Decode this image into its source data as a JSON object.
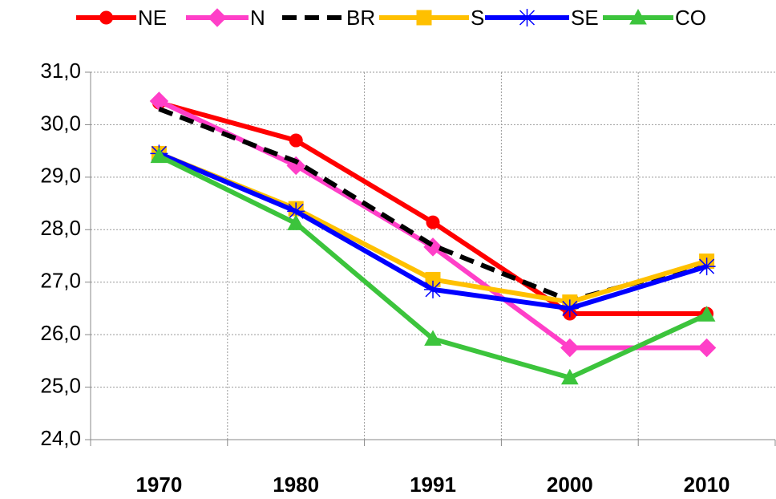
{
  "chart_data": {
    "type": "line",
    "categories": [
      "1970",
      "1980",
      "1991",
      "2000",
      "2010"
    ],
    "series": [
      {
        "name": "NE",
        "color": "#ff0000",
        "marker": "circle",
        "values": [
          30.42,
          29.7,
          28.14,
          26.4,
          26.4
        ]
      },
      {
        "name": "N",
        "color": "#ff3fc8",
        "marker": "diamond",
        "values": [
          30.45,
          29.22,
          27.67,
          25.75,
          25.75
        ]
      },
      {
        "name": "BR",
        "color": "#000000",
        "marker": "none",
        "dash": true,
        "values": [
          30.3,
          29.3,
          27.7,
          26.65,
          27.35
        ]
      },
      {
        "name": "S",
        "color": "#ffc000",
        "marker": "square",
        "values": [
          29.45,
          28.4,
          27.05,
          26.62,
          27.4
        ]
      },
      {
        "name": "SE",
        "color": "#0000ff",
        "marker": "star",
        "values": [
          29.45,
          28.35,
          26.86,
          26.5,
          27.3
        ]
      },
      {
        "name": "CO",
        "color": "#3cc43c",
        "marker": "triangle",
        "values": [
          29.4,
          28.12,
          25.92,
          25.18,
          26.38
        ]
      }
    ],
    "ylim": [
      24,
      31
    ],
    "yticks": [
      {
        "value": 24,
        "label": "24,0"
      },
      {
        "value": 25,
        "label": "25,0"
      },
      {
        "value": 26,
        "label": "26,0"
      },
      {
        "value": 27,
        "label": "27,0"
      },
      {
        "value": 28,
        "label": "28,0"
      },
      {
        "value": 29,
        "label": "29,0"
      },
      {
        "value": 30,
        "label": "30,0"
      },
      {
        "value": 31,
        "label": "31,0"
      }
    ],
    "grid": true
  }
}
